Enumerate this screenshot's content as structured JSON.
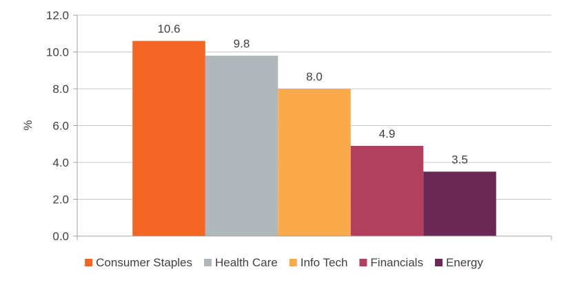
{
  "chart_data": {
    "type": "bar",
    "title": "",
    "xlabel": "",
    "ylabel": "%",
    "ylim": [
      0,
      12
    ],
    "yticks": [
      "0.0",
      "2.0",
      "4.0",
      "6.0",
      "8.0",
      "10.0",
      "12.0"
    ],
    "grid": true,
    "legend_position": "bottom",
    "categories": [
      "Consumer Staples",
      "Health Care",
      "Info Tech",
      "Financials",
      "Energy"
    ],
    "values": [
      10.6,
      9.8,
      8.0,
      4.9,
      3.5
    ],
    "data_labels": [
      "10.6",
      "9.8",
      "8.0",
      "4.9",
      "3.5"
    ],
    "colors": [
      "#F26522",
      "#B0B7BB",
      "#FBAA4B",
      "#B33F5F",
      "#6B2857"
    ]
  }
}
